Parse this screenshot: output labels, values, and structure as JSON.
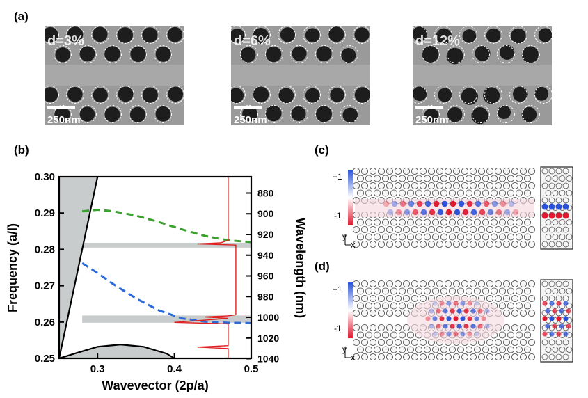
{
  "panels": {
    "a": "(a)",
    "b": "(b)",
    "c": "(c)",
    "d": "(d)"
  },
  "sem_images": [
    {
      "disorder_label": "d=3%",
      "scale_label": "250nm"
    },
    {
      "disorder_label": "d=6%",
      "scale_label": "250nm"
    },
    {
      "disorder_label": "d=12%",
      "scale_label": "250nm"
    }
  ],
  "chart_data": {
    "type": "line",
    "xlabel": "Wavevector (2p/a)",
    "ylabel_left": "Frequency (a/l)",
    "ylabel_right": "Wavelength (nm)",
    "xlim": [
      0.25,
      0.5
    ],
    "ylim": [
      0.25,
      0.3
    ],
    "x_ticks": [
      "0.3",
      "0.4",
      "0.5"
    ],
    "y_ticks": [
      "0.25",
      "0.26",
      "0.27",
      "0.28",
      "0.29",
      "0.30"
    ],
    "right_ticks": [
      "880",
      "900",
      "920",
      "940",
      "960",
      "980",
      "1000",
      "1020",
      "1040"
    ],
    "right_tick_freqs": [
      0.2955,
      0.2898,
      0.2841,
      0.2784,
      0.2727,
      0.267,
      0.2613,
      0.2556,
      0.2499
    ],
    "light_line": {
      "x": [
        0.25,
        0.3
      ],
      "y": [
        0.25,
        0.3
      ]
    },
    "slab_band": {
      "x": [
        0.25,
        0.27,
        0.3,
        0.33,
        0.36,
        0.39,
        0.4
      ],
      "y": [
        0.25,
        0.2513,
        0.2532,
        0.2538,
        0.2532,
        0.2513,
        0.25
      ]
    },
    "gray_bands": [
      [
        0.2805,
        0.2818
      ],
      [
        0.2598,
        0.2618
      ]
    ],
    "series": [
      {
        "color": "#3aa02e",
        "x": [
          0.28,
          0.3,
          0.32,
          0.35,
          0.38,
          0.41,
          0.44,
          0.47,
          0.5
        ],
        "y": [
          0.2905,
          0.2909,
          0.2905,
          0.2893,
          0.2875,
          0.2855,
          0.2837,
          0.2825,
          0.282
        ]
      },
      {
        "color": "#2b6ad8",
        "x": [
          0.28,
          0.3,
          0.32,
          0.35,
          0.38,
          0.41,
          0.44,
          0.47,
          0.5
        ],
        "y": [
          0.2762,
          0.2735,
          0.2705,
          0.2665,
          0.2632,
          0.261,
          0.2601,
          0.2598,
          0.2597
        ]
      }
    ],
    "spectrum": {
      "color": "#e02020",
      "x_at": [
        0.47,
        0.47,
        0.47,
        0.46,
        0.43,
        0.48,
        0.48,
        0.48,
        0.48,
        0.47,
        0.44,
        0.47,
        0.4,
        0.47,
        0.47,
        0.47,
        0.43,
        0.47,
        0.47
      ],
      "freq": [
        0.3,
        0.2835,
        0.2825,
        0.2818,
        0.2815,
        0.2812,
        0.2805,
        0.27,
        0.262,
        0.2617,
        0.2614,
        0.261,
        0.2599,
        0.2595,
        0.258,
        0.2535,
        0.2531,
        0.2527,
        0.25
      ]
    }
  },
  "field_maps": [
    {
      "scale_top": "+1",
      "scale_bottom": "-1",
      "axis_y": "y",
      "axis_x": "x"
    },
    {
      "scale_top": "+1",
      "scale_bottom": "-1",
      "axis_y": "y",
      "axis_x": "x"
    }
  ]
}
